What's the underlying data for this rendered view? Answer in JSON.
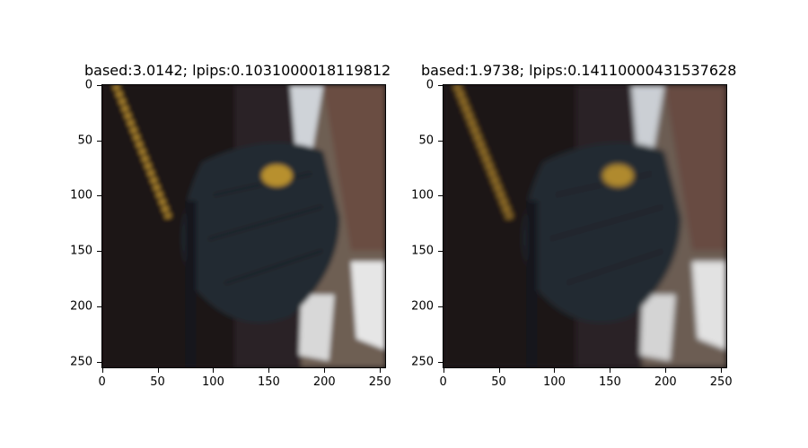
{
  "panels": [
    {
      "title": "based:3.0142; lpips:0.1031000018119812",
      "x_ticks": [
        "0",
        "50",
        "100",
        "150",
        "200",
        "250"
      ],
      "y_ticks": [
        "0",
        "50",
        "100",
        "150",
        "200",
        "250"
      ]
    },
    {
      "title": "based:1.9738; lpips:0.14110000431537628",
      "x_ticks": [
        "0",
        "50",
        "100",
        "150",
        "200",
        "250"
      ],
      "y_ticks": [
        "0",
        "50",
        "100",
        "150",
        "200",
        "250"
      ]
    }
  ],
  "image_description_colors": {
    "background_dark": "#1c1618",
    "bag": "#232a33",
    "chain": "#c79a35",
    "floor": "#7a6b5c",
    "legs": "#6b5146",
    "sock": "#e8e8e8"
  }
}
